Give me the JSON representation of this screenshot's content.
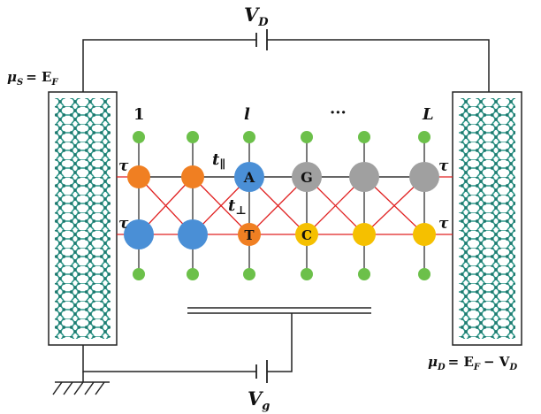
{
  "labels": {
    "vd_main": "V",
    "vd_sub": "D",
    "vg_main": "V",
    "vg_sub": "g",
    "mu_s_main": "μ",
    "mu_s_sub": "S",
    "mu_s_rest": "= E",
    "mu_s_rest_sub": "F",
    "mu_d_main": "μ",
    "mu_d_sub": "D",
    "mu_d_rest": "= E",
    "mu_d_rest_sub": "F",
    "mu_d_tail": "− V",
    "mu_d_tail_sub": "D",
    "col_1": "1",
    "col_l": "l",
    "col_dots": "···",
    "col_L": "L",
    "tau": "τ",
    "t_par": "t",
    "t_par_sub": "∥",
    "t_perp": "t",
    "t_perp_sub": "⊥"
  },
  "bases": {
    "top": [
      "",
      "",
      "A",
      "G",
      "",
      ""
    ],
    "bottom": [
      "",
      "",
      "T",
      "C",
      "",
      ""
    ]
  },
  "colors": {
    "orange": "#f07f22",
    "blue": "#4a8fd6",
    "gray": "#a0a0a0",
    "yellow": "#f5c000",
    "green": "#6cc04a",
    "red_bond": "#e02020",
    "nanotube": "#2e9a8c"
  }
}
